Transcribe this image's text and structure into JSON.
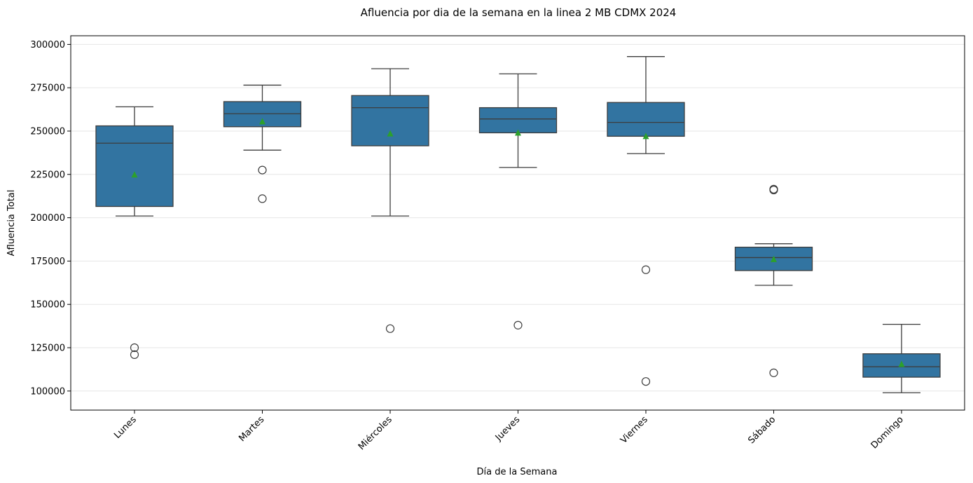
{
  "chart_data": {
    "type": "box",
    "title": "Afluencia por dia de la semana en la linea 2 MB CDMX 2024",
    "xlabel": "Día de la Semana",
    "ylabel": "Afluencia Total",
    "ylim": [
      89000,
      305000
    ],
    "yticks": [
      100000,
      125000,
      150000,
      175000,
      200000,
      225000,
      250000,
      275000,
      300000
    ],
    "ytick_labels": [
      "100000",
      "125000",
      "150000",
      "175000",
      "200000",
      "225000",
      "250000",
      "275000",
      "300000"
    ],
    "grid": "horizontal",
    "categories": [
      "Lunes",
      "Martes",
      "Miércoles",
      "Jueves",
      "Viernes",
      "Sábado",
      "Domingo"
    ],
    "boxes": [
      {
        "whislo": 201000,
        "q1": 206500,
        "med": 243000,
        "q3": 253000,
        "whishi": 264000,
        "mean": 224800,
        "fliers": [
          125000,
          121000
        ]
      },
      {
        "whislo": 239000,
        "q1": 252500,
        "med": 260000,
        "q3": 267000,
        "whishi": 276500,
        "mean": 255500,
        "fliers": [
          227500,
          211000
        ]
      },
      {
        "whislo": 201000,
        "q1": 241500,
        "med": 263500,
        "q3": 270500,
        "whishi": 286000,
        "mean": 248500,
        "fliers": [
          136000
        ]
      },
      {
        "whislo": 229000,
        "q1": 249000,
        "med": 257000,
        "q3": 263500,
        "whishi": 283000,
        "mean": 249000,
        "fliers": [
          138000
        ]
      },
      {
        "whislo": 237000,
        "q1": 247000,
        "med": 255000,
        "q3": 266500,
        "whishi": 293000,
        "mean": 247000,
        "fliers": [
          170000,
          105500
        ]
      },
      {
        "whislo": 161000,
        "q1": 169500,
        "med": 177000,
        "q3": 183000,
        "whishi": 185000,
        "mean": 176000,
        "fliers": [
          216500,
          216000,
          110500
        ]
      },
      {
        "whislo": 99000,
        "q1": 108000,
        "med": 114000,
        "q3": 121500,
        "whishi": 138500,
        "mean": 115500,
        "fliers": []
      }
    ],
    "colors": {
      "box": "#3274a1",
      "mean": "#2ca02c",
      "line": "#3d3d3d",
      "grid": "#e6e6e6"
    }
  }
}
